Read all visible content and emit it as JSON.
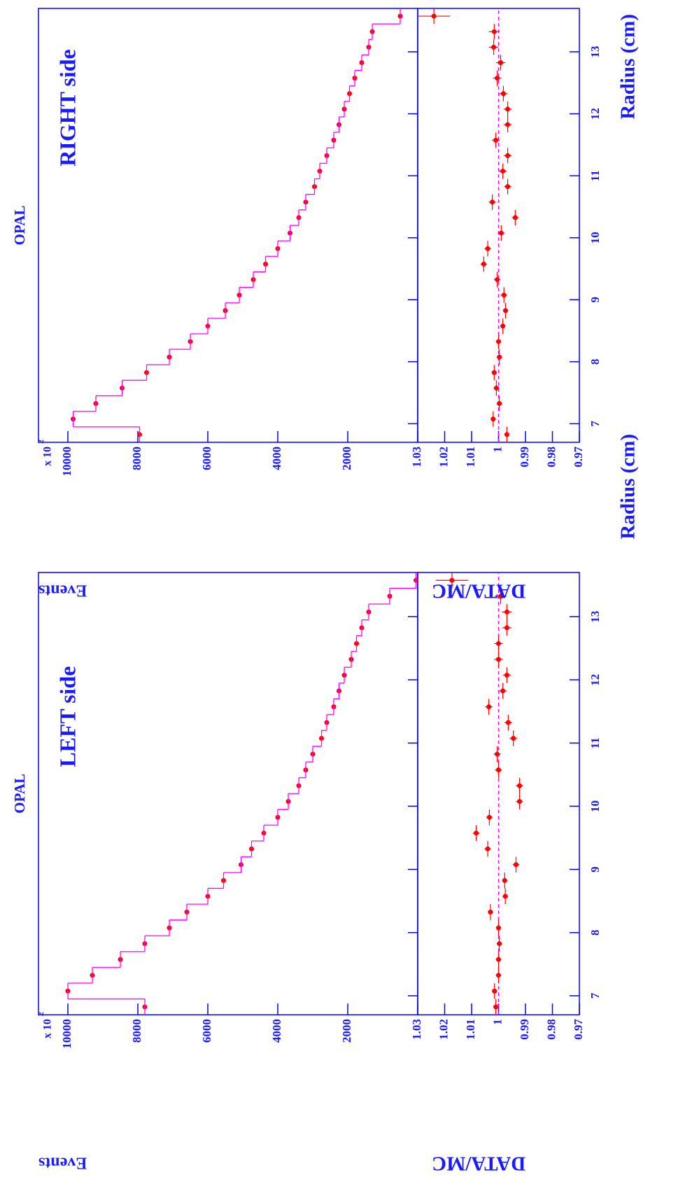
{
  "chart_data": [
    {
      "type": "histogram",
      "title": "OPAL",
      "annotation": "LEFT side",
      "x_label": "Radius (cm)",
      "y_label": "Events",
      "y_scale_label": "x 10",
      "y_scale_exponent": "2",
      "ratio_label": "DATA/MC",
      "bins": [
        6.7,
        6.95,
        7.2,
        7.45,
        7.7,
        7.95,
        8.2,
        8.45,
        8.7,
        8.95,
        9.2,
        9.45,
        9.7,
        9.95,
        10.2,
        10.45,
        10.7,
        10.95,
        11.2,
        11.45,
        11.7,
        11.95,
        12.2,
        12.45,
        12.7,
        12.95,
        13.2,
        13.45,
        13.7
      ],
      "xlim": [
        6.7,
        13.7
      ],
      "xticks": [
        7,
        8,
        9,
        10,
        11,
        12,
        13
      ],
      "ylim": [
        0,
        10840
      ],
      "yticks": [
        2000,
        4000,
        6000,
        8000,
        10000
      ],
      "series": [
        {
          "style": "points",
          "color": "#ff0000",
          "values": [
            7800,
            10000,
            9300,
            8500,
            7800,
            7100,
            6600,
            6000,
            5550,
            5050,
            4750,
            4400,
            4000,
            3700,
            3400,
            3200,
            3000,
            2750,
            2600,
            2400,
            2250,
            2100,
            1900,
            1750,
            1600,
            1400,
            800,
            50
          ]
        },
        {
          "style": "step",
          "color": "#ff00ff",
          "values": [
            7800,
            10000,
            9300,
            8500,
            7800,
            7100,
            6600,
            6000,
            5550,
            5050,
            4750,
            4400,
            4000,
            3700,
            3400,
            3200,
            3000,
            2750,
            2600,
            2400,
            2250,
            2100,
            1900,
            1750,
            1600,
            1400,
            800,
            50
          ]
        }
      ],
      "ratio": {
        "color": "#ff0000",
        "reference_color": "#ff00ff",
        "reference": 1,
        "values": [
          1.001,
          1.0015,
          1.0,
          1.0,
          0.9997,
          1.0,
          1.003,
          0.9975,
          0.9977,
          0.9935,
          1.004,
          1.0083,
          1.0034,
          0.9922,
          0.9922,
          1.0,
          1.0005,
          0.9945,
          0.9964,
          1.0036,
          0.9984,
          0.9969,
          1.0,
          1.0,
          0.9969,
          0.9969,
          0.9992,
          1.0173
        ],
        "errors": [
          0.001,
          0.001,
          0.001,
          0.001,
          0.001,
          0.001,
          0.001,
          0.001,
          0.001,
          0.0012,
          0.0012,
          0.0012,
          0.0012,
          0.0013,
          0.0013,
          0.0013,
          0.0013,
          0.0014,
          0.0014,
          0.0014,
          0.0015,
          0.0015,
          0.0016,
          0.0016,
          0.0017,
          0.0018,
          0.0022,
          0.006
        ]
      },
      "ratio_ylim": [
        0.97,
        1.03
      ],
      "ratio_yticks": [
        0.97,
        0.98,
        0.99,
        1,
        1.01,
        1.02,
        1.03
      ]
    },
    {
      "type": "histogram",
      "title": "OPAL",
      "annotation": "RIGHT side",
      "x_label": "Radius (cm)",
      "y_label": "Events",
      "y_scale_label": "x 10",
      "y_scale_exponent": "2",
      "ratio_label": "DATA/MC",
      "bins": [
        6.7,
        6.95,
        7.2,
        7.45,
        7.7,
        7.95,
        8.2,
        8.45,
        8.7,
        8.95,
        9.2,
        9.45,
        9.7,
        9.95,
        10.2,
        10.45,
        10.7,
        10.95,
        11.2,
        11.45,
        11.7,
        11.95,
        12.2,
        12.45,
        12.7,
        12.95,
        13.2,
        13.45,
        13.7
      ],
      "xlim": [
        6.7,
        13.7
      ],
      "xticks": [
        7,
        8,
        9,
        10,
        11,
        12,
        13
      ],
      "ylim": [
        0,
        10840
      ],
      "yticks": [
        2000,
        4000,
        6000,
        8000,
        10000
      ],
      "series": [
        {
          "style": "points",
          "color": "#ff0000",
          "values": [
            7950,
            9850,
            9200,
            8450,
            7750,
            7100,
            6500,
            6000,
            5500,
            5100,
            4700,
            4350,
            4000,
            3650,
            3400,
            3200,
            2950,
            2800,
            2600,
            2400,
            2250,
            2100,
            1950,
            1800,
            1600,
            1400,
            1300,
            500
          ]
        },
        {
          "style": "step",
          "color": "#ff00ff",
          "values": [
            7950,
            9850,
            9200,
            8450,
            7750,
            7100,
            6500,
            6000,
            5500,
            5100,
            4700,
            4350,
            4000,
            3650,
            3400,
            3200,
            2950,
            2800,
            2600,
            2400,
            2250,
            2100,
            1950,
            1800,
            1600,
            1400,
            1300,
            500
          ]
        }
      ],
      "ratio": {
        "color": "#ff0000",
        "reference_color": "#ff00ff",
        "reference": 1,
        "values": [
          0.9969,
          1.002,
          0.9997,
          1.0008,
          1.0016,
          0.9997,
          1.0,
          0.9984,
          0.9974,
          0.998,
          1.0005,
          1.0055,
          1.004,
          0.999,
          0.9938,
          1.0023,
          0.9966,
          0.9984,
          0.9966,
          1.001,
          0.9966,
          0.9966,
          0.9982,
          1.0005,
          0.9992,
          1.0018,
          1.0016,
          1.024
        ],
        "errors": [
          0.001,
          0.001,
          0.001,
          0.001,
          0.001,
          0.001,
          0.001,
          0.001,
          0.001,
          0.0012,
          0.0012,
          0.0012,
          0.0012,
          0.0013,
          0.0013,
          0.0013,
          0.0013,
          0.0014,
          0.0014,
          0.0014,
          0.0015,
          0.0015,
          0.0016,
          0.0016,
          0.0017,
          0.0018,
          0.002,
          0.006
        ]
      },
      "ratio_ylim": [
        0.97,
        1.03
      ],
      "ratio_yticks": [
        0.97,
        0.98,
        0.99,
        1,
        1.01,
        1.02,
        1.03
      ]
    }
  ]
}
